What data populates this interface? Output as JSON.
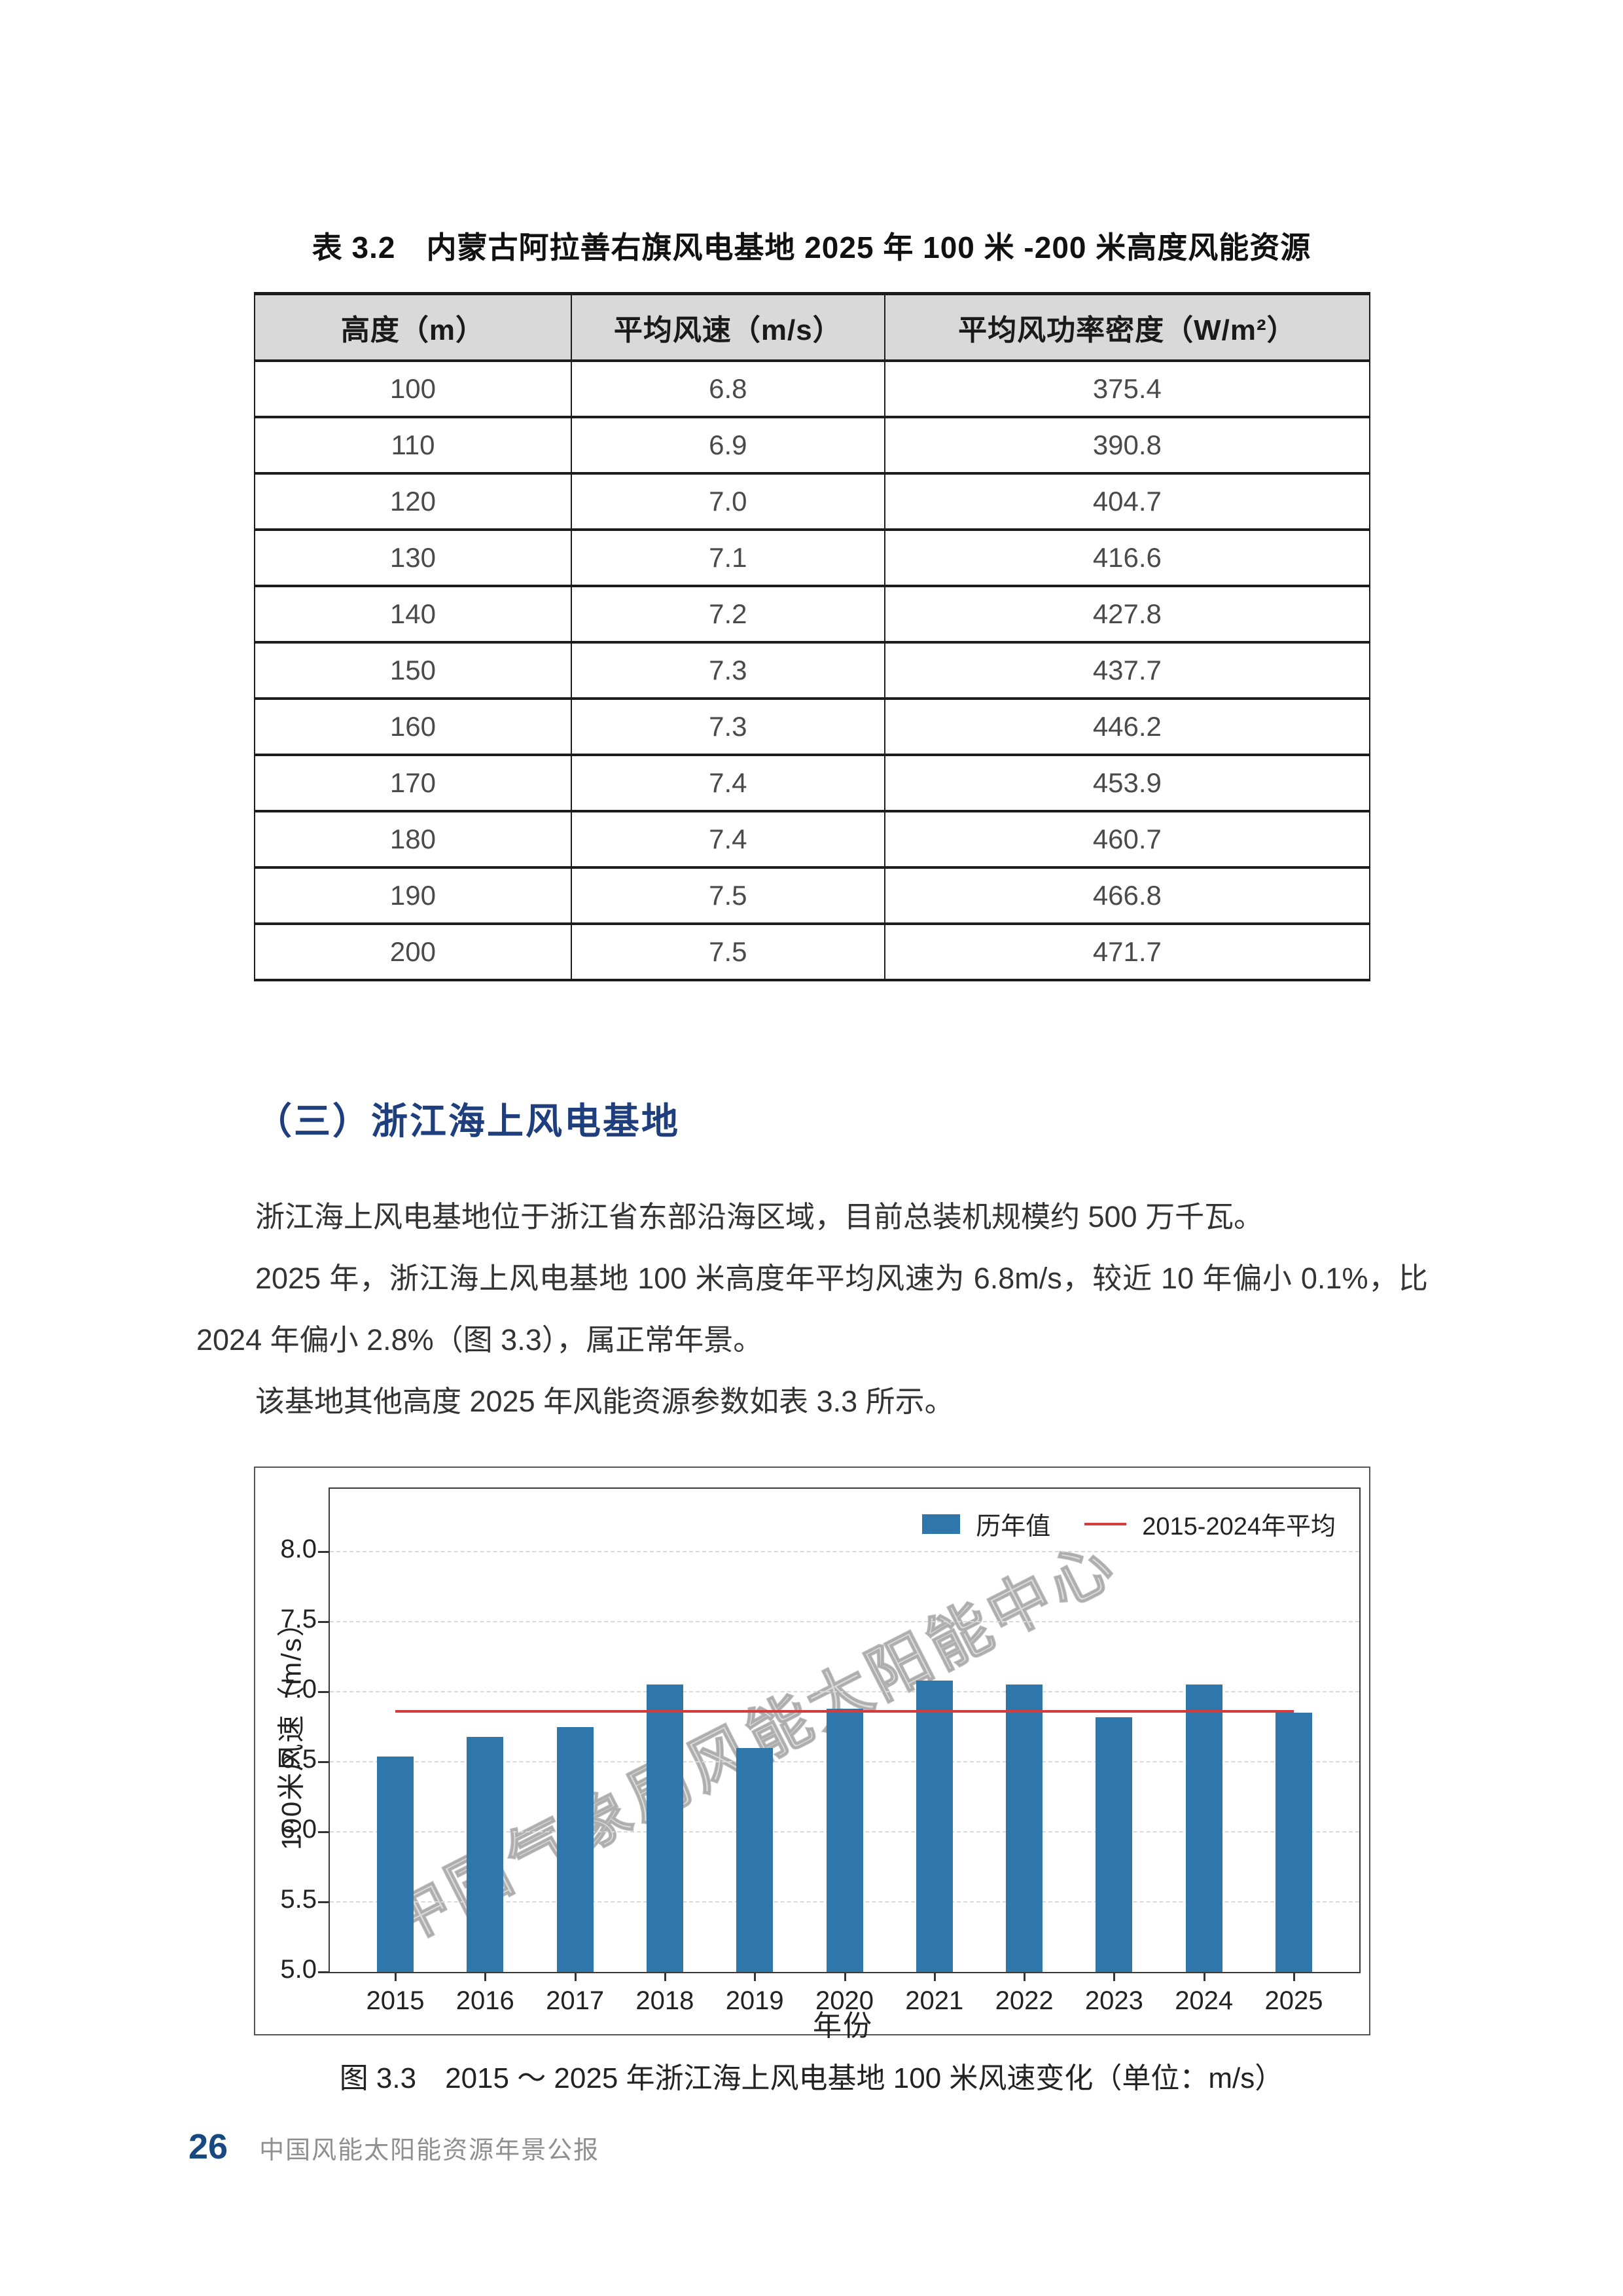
{
  "page": {
    "table_caption": "表 3.2　内蒙古阿拉善右旗风电基地 2025 年 100 米 -200 米高度风能资源",
    "section_heading": "（三）浙江海上风电基地",
    "paragraphs": [
      "浙江海上风电基地位于浙江省东部沿海区域，目前总装机规模约 500 万千瓦。",
      "2025 年，浙江海上风电基地 100 米高度年平均风速为 6.8m/s，较近 10 年偏小 0.1%，比 2024 年偏小 2.8%（图 3.3），属正常年景。",
      "该基地其他高度 2025 年风能资源参数如表 3.3 所示。"
    ],
    "figure_caption": "图 3.3　2015 ～ 2025 年浙江海上风电基地 100 米风速变化（单位：m/s）",
    "footer": {
      "page_number": "26",
      "text": "中国风能太阳能资源年景公报"
    }
  },
  "table": {
    "headers": [
      "高度（m）",
      "平均风速（m/s）",
      "平均风功率密度（W/m²）"
    ],
    "col_widths_percent": [
      28.4,
      28.1,
      43.5
    ],
    "rows": [
      [
        "100",
        "6.8",
        "375.4"
      ],
      [
        "110",
        "6.9",
        "390.8"
      ],
      [
        "120",
        "7.0",
        "404.7"
      ],
      [
        "130",
        "7.1",
        "416.6"
      ],
      [
        "140",
        "7.2",
        "427.8"
      ],
      [
        "150",
        "7.3",
        "437.7"
      ],
      [
        "160",
        "7.3",
        "446.2"
      ],
      [
        "170",
        "7.4",
        "453.9"
      ],
      [
        "180",
        "7.4",
        "460.7"
      ],
      [
        "190",
        "7.5",
        "466.8"
      ],
      [
        "200",
        "7.5",
        "471.7"
      ]
    ]
  },
  "chart_data": {
    "type": "bar",
    "title": "",
    "categories": [
      "2015",
      "2016",
      "2017",
      "2018",
      "2019",
      "2020",
      "2021",
      "2022",
      "2023",
      "2024",
      "2025"
    ],
    "values": [
      6.54,
      6.68,
      6.75,
      7.05,
      6.6,
      6.88,
      7.08,
      7.05,
      6.82,
      7.05,
      6.85
    ],
    "series_label": "历年值",
    "mean_line": {
      "label": "2015-2024年平均",
      "value": 6.86,
      "from_category": "2015",
      "to_category": "2025"
    },
    "ylabel": "100米风速（m/s）",
    "xlabel": "年份",
    "ylim": [
      5.0,
      8.45
    ],
    "yticks": [
      5.0,
      5.5,
      6.0,
      6.5,
      7.0,
      7.5,
      8.0
    ],
    "grid": "horizontal-dashed",
    "legend_position": "top-right",
    "bar_color": "#2f76ab",
    "mean_line_color": "#d63b3b",
    "watermark": "中国气象局风能太阳能中心"
  },
  "colors": {
    "heading_blue": "#1f3e7d",
    "footer_blue": "#17487f",
    "table_header_bg": "#d9d9d9",
    "bar_blue": "#2f76ab",
    "line_red": "#d63b3b"
  }
}
